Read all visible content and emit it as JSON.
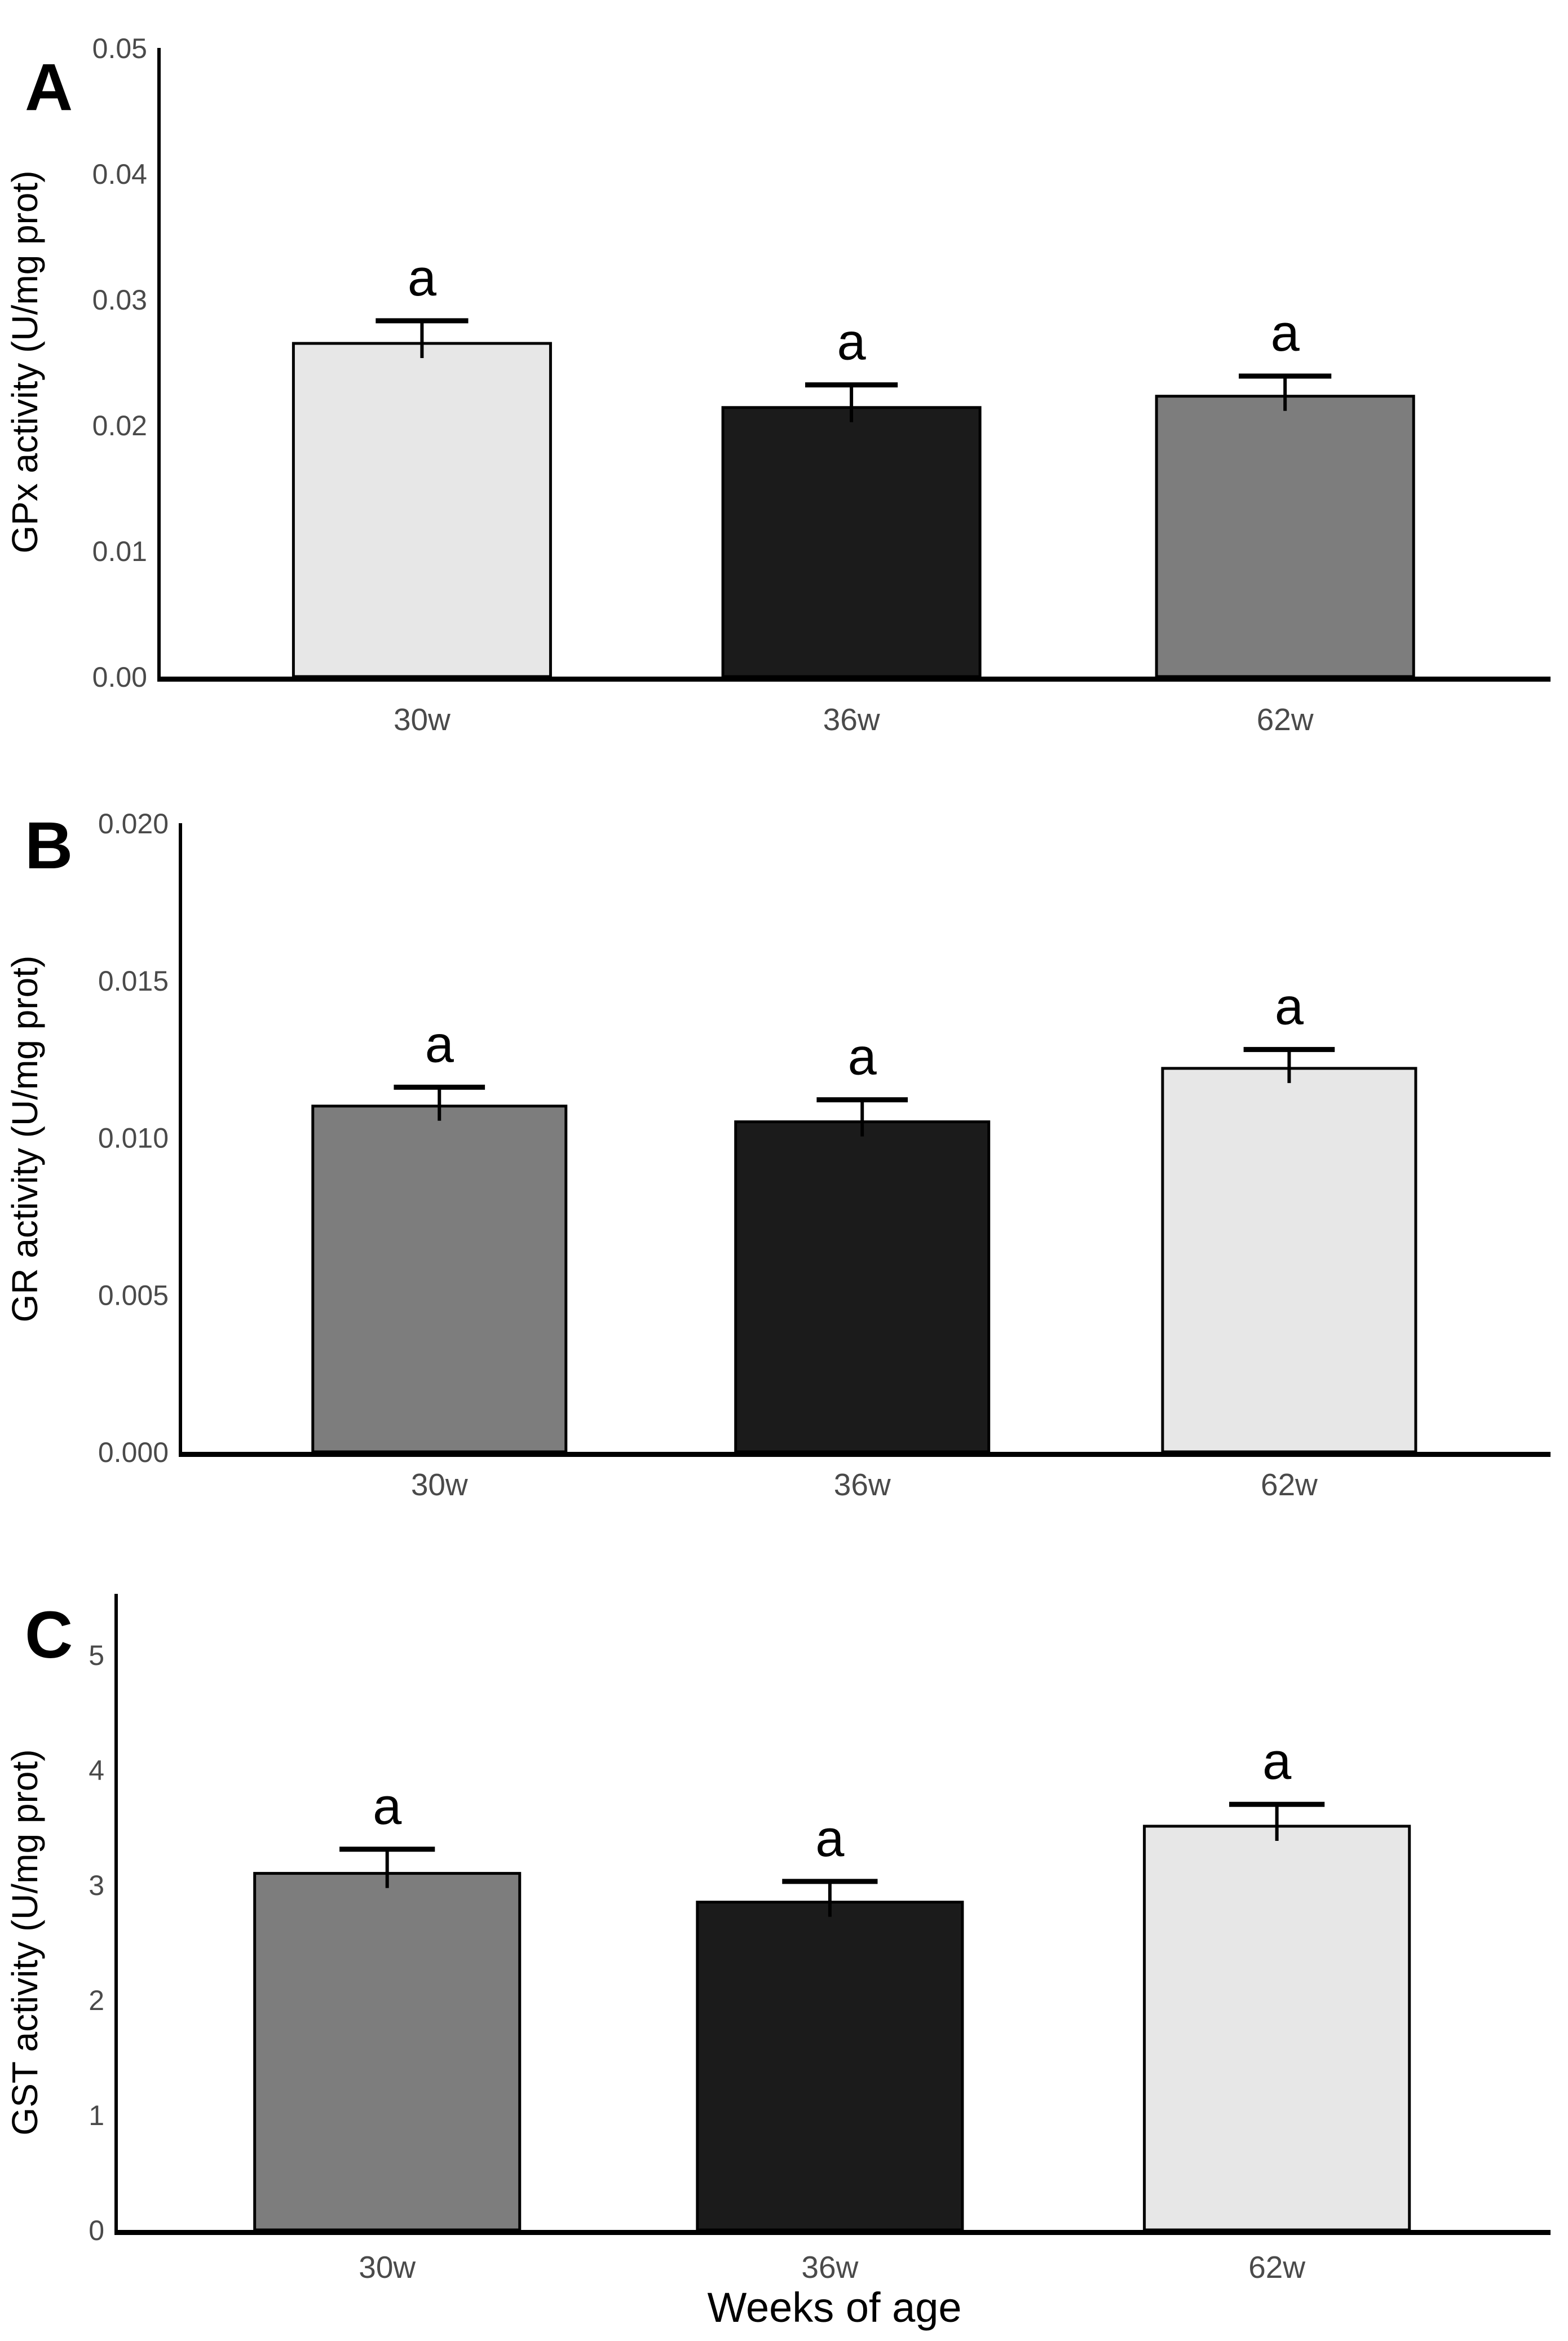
{
  "text_colors": {
    "tick_label": "#4a4a4a",
    "axis_title": "#000000",
    "panel_letter": "#000000",
    "sig_letter": "#000000",
    "axis_line": "#000000",
    "bar_stroke": "#000000"
  },
  "chart_data": [
    {
      "type": "bar",
      "panel": "A",
      "title": "",
      "ylabel": "GPx activity (U/mg prot)",
      "xlabel": "",
      "categories": [
        "30w",
        "36w",
        "62w"
      ],
      "values": [
        0.0265,
        0.0214,
        0.0223
      ],
      "errors_upper": [
        0.0018,
        0.0018,
        0.0016
      ],
      "sig_labels": [
        "a",
        "a",
        "a"
      ],
      "bar_colors": [
        "#e7e7e7",
        "#1b1b1b",
        "#7d7d7d"
      ],
      "ylim": [
        0,
        0.05
      ],
      "ytick_values": [
        0,
        0.01,
        0.02,
        0.03,
        0.04,
        0.05
      ],
      "ytick_labels": [
        "0.00",
        "0.01",
        "0.02",
        "0.03",
        "0.04",
        "0.05"
      ],
      "axis_overshoot_units": 0,
      "grid": false,
      "legend": null
    },
    {
      "type": "bar",
      "panel": "B",
      "title": "",
      "ylabel": "GR activity (U/mg prot)",
      "xlabel": "",
      "categories": [
        "30w",
        "36w",
        "62w"
      ],
      "values": [
        0.011,
        0.0105,
        0.0122
      ],
      "errors_upper": [
        0.0006,
        0.0007,
        0.0006
      ],
      "sig_labels": [
        "a",
        "a",
        "a"
      ],
      "bar_colors": [
        "#7d7d7d",
        "#1b1b1b",
        "#e7e7e7"
      ],
      "ylim": [
        0,
        0.02
      ],
      "ytick_values": [
        0,
        0.005,
        0.01,
        0.015,
        0.02
      ],
      "ytick_labels": [
        "0.000",
        "0.005",
        "0.010",
        "0.015",
        "0.020"
      ],
      "axis_overshoot_units": 0,
      "grid": false,
      "legend": null
    },
    {
      "type": "bar",
      "panel": "C",
      "title": "",
      "ylabel": "GST activity (U/mg prot)",
      "xlabel": "Weeks of age",
      "categories": [
        "30w",
        "36w",
        "62w"
      ],
      "values": [
        3.1,
        2.85,
        3.51
      ],
      "errors_upper": [
        0.21,
        0.18,
        0.19
      ],
      "sig_labels": [
        "a",
        "a",
        "a"
      ],
      "bar_colors": [
        "#7d7d7d",
        "#1b1b1b",
        "#e7e7e7"
      ],
      "ylim": [
        0,
        5
      ],
      "ytick_values": [
        0,
        1,
        2,
        3,
        4,
        5
      ],
      "ytick_labels": [
        "0",
        "1",
        "2",
        "3",
        "4",
        "5"
      ],
      "axis_overshoot_units": 0.53,
      "grid": false,
      "legend": null
    }
  ]
}
